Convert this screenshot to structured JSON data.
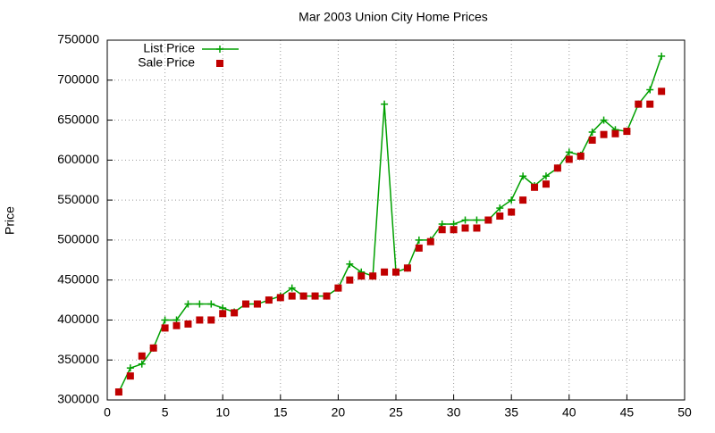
{
  "chart_data": {
    "type": "line",
    "title": "Mar 2003 Union City Home Prices",
    "y_label": "Price",
    "x": [
      1,
      2,
      3,
      4,
      5,
      6,
      7,
      8,
      9,
      10,
      11,
      12,
      13,
      14,
      15,
      16,
      17,
      18,
      19,
      20,
      21,
      22,
      23,
      24,
      25,
      26,
      27,
      28,
      29,
      30,
      31,
      32,
      33,
      34,
      35,
      36,
      37,
      38,
      39,
      40,
      41,
      42,
      43,
      44,
      45,
      46,
      47,
      48
    ],
    "series": [
      {
        "name": "List Price",
        "style": "linespoints",
        "color": "#00a000",
        "values": [
          310000,
          340000,
          345000,
          365000,
          400000,
          400000,
          420000,
          420000,
          420000,
          415000,
          410000,
          420000,
          420000,
          425000,
          430000,
          440000,
          430000,
          430000,
          430000,
          440000,
          470000,
          460000,
          455000,
          670000,
          460000,
          465000,
          500000,
          500000,
          520000,
          520000,
          525000,
          525000,
          525000,
          540000,
          550000,
          580000,
          568000,
          580000,
          590000,
          610000,
          606000,
          635000,
          650000,
          638000,
          636000,
          670000,
          688000,
          730000
        ]
      },
      {
        "name": "Sale Price",
        "style": "points",
        "color": "#c00000",
        "values": [
          310000,
          330000,
          355000,
          365000,
          390000,
          393000,
          395000,
          400000,
          400000,
          408000,
          409000,
          420000,
          420000,
          425000,
          428000,
          430000,
          430000,
          430000,
          430000,
          440000,
          450000,
          455000,
          455000,
          460000,
          460000,
          465000,
          490000,
          498000,
          513000,
          513000,
          515000,
          515000,
          525000,
          530000,
          535000,
          550000,
          566000,
          570000,
          590000,
          601000,
          605000,
          625000,
          632000,
          633000,
          636000,
          670000,
          670000,
          686000
        ]
      }
    ],
    "xlim": [
      0,
      50
    ],
    "xticks": [
      0,
      5,
      10,
      15,
      20,
      25,
      30,
      35,
      40,
      45,
      50
    ],
    "ylim": [
      300000,
      750000
    ],
    "yticks": [
      300000,
      350000,
      400000,
      450000,
      500000,
      550000,
      600000,
      650000,
      700000,
      750000
    ],
    "grid": true,
    "legend": "top-left"
  }
}
